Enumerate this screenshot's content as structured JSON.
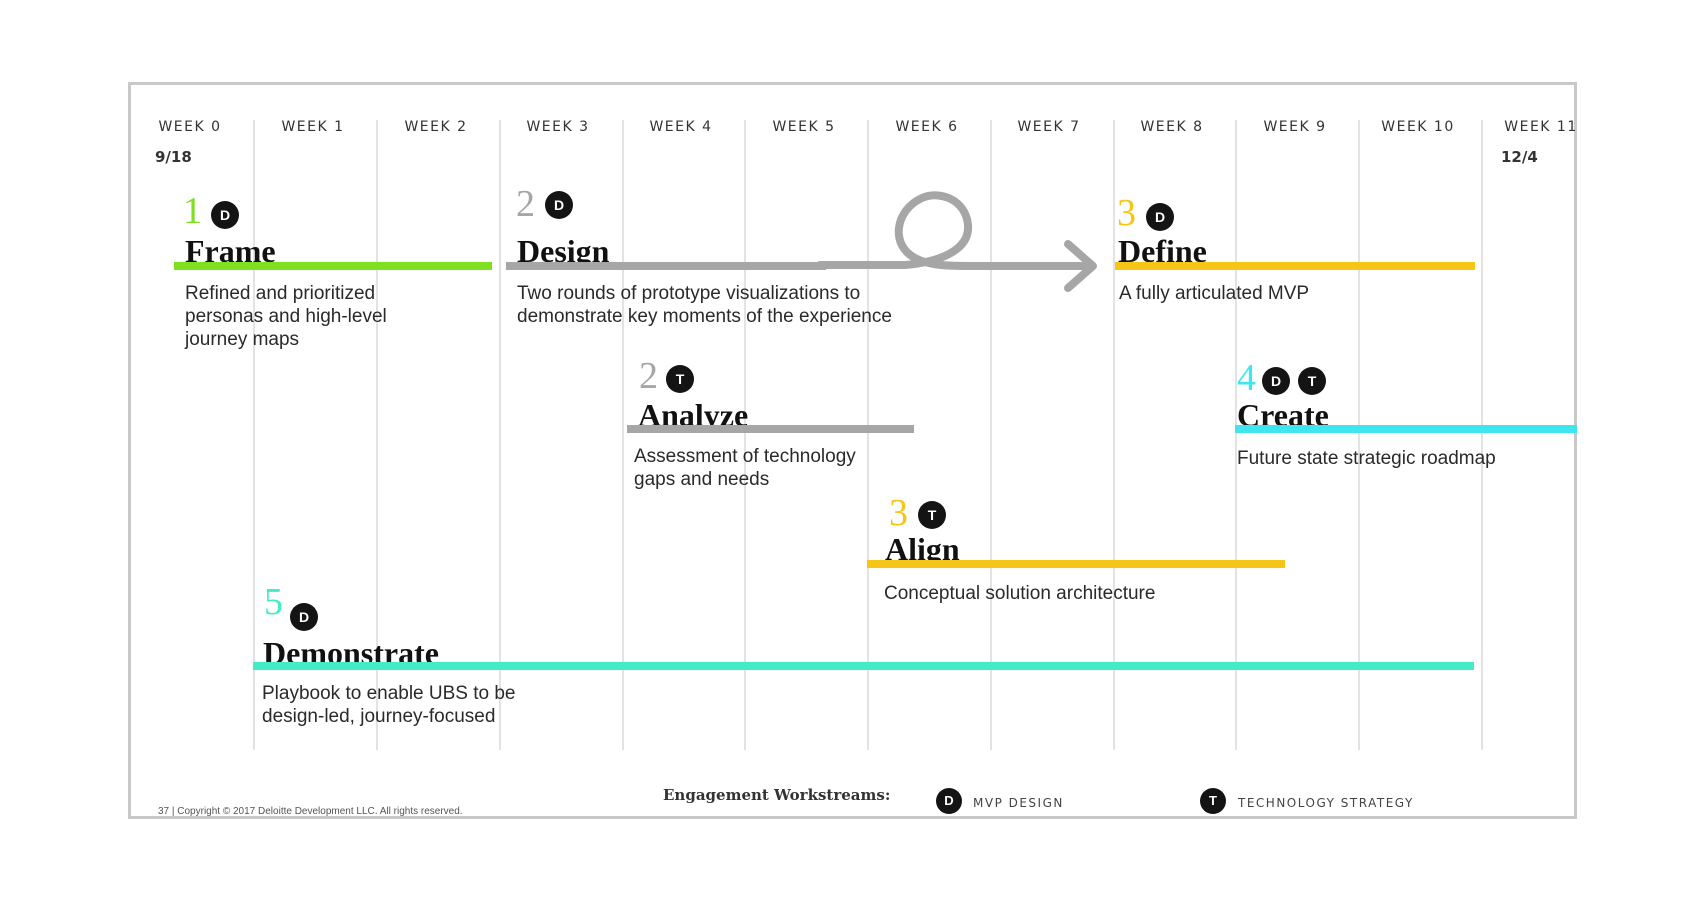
{
  "weeks": [
    "WEEK 0",
    "WEEK 1",
    "WEEK 2",
    "WEEK 3",
    "WEEK 4",
    "WEEK 5",
    "WEEK 6",
    "WEEK 7",
    "WEEK 8",
    "WEEK 9",
    "WEEK 10",
    "WEEK 11"
  ],
  "start_date": "9/18",
  "end_date": "12/4",
  "colors": {
    "green": "#7ee021",
    "gray": "#a6a6a6",
    "yellow": "#f5c518",
    "cyan": "#3fe6f0",
    "teal": "#41ecc6",
    "badge": "#141414"
  },
  "workstreams": [
    {
      "id": "frame",
      "number": "1",
      "badges": [
        "D"
      ],
      "title": "Frame",
      "desc": "Refined and prioritized personas and high-level journey maps",
      "color": "green"
    },
    {
      "id": "design",
      "number": "2",
      "badges": [
        "D"
      ],
      "title": "Design",
      "desc": "Two rounds of prototype visualizations to demonstrate key moments of the experience",
      "color": "gray"
    },
    {
      "id": "define",
      "number": "3",
      "badges": [
        "D"
      ],
      "title": "Define",
      "desc": "A fully articulated MVP",
      "color": "yellow"
    },
    {
      "id": "analyze",
      "number": "2",
      "badges": [
        "T"
      ],
      "title": "Analyze",
      "desc": "Assessment of technology gaps and needs",
      "color": "gray"
    },
    {
      "id": "create",
      "number": "4",
      "badges": [
        "D",
        "T"
      ],
      "title": "Create",
      "desc": "Future state strategic roadmap",
      "color": "cyan"
    },
    {
      "id": "align",
      "number": "3",
      "badges": [
        "T"
      ],
      "title": "Align",
      "desc": "Conceptual solution architecture",
      "color": "yellow"
    },
    {
      "id": "demonstrate",
      "number": "5",
      "badges": [
        "D"
      ],
      "title": "Demonstrate",
      "desc": "Playbook to enable UBS to be design-led, journey-focused",
      "color": "teal"
    }
  ],
  "legend": {
    "title": "Engagement Workstreams:",
    "items": [
      {
        "badge": "D",
        "label": "MVP DESIGN"
      },
      {
        "badge": "T",
        "label": "TECHNOLOGY STRATEGY"
      }
    ]
  },
  "copyright": "37 | Copyright © 2017 Deloitte Development LLC. All rights reserved."
}
